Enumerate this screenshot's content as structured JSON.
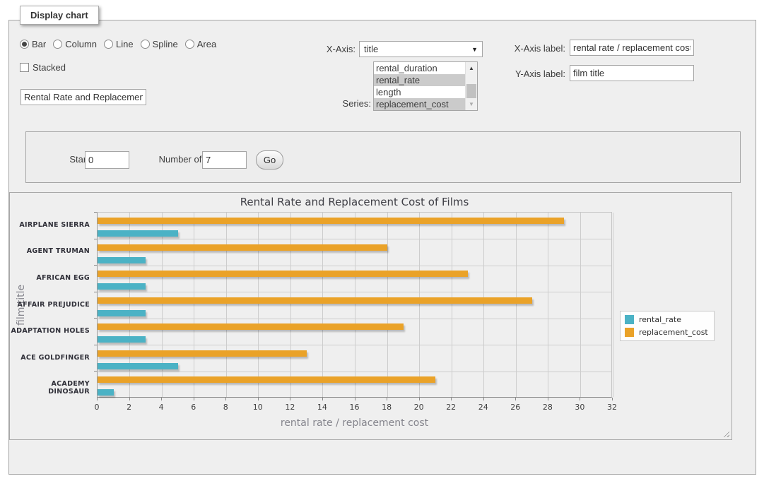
{
  "window": {
    "legend_title": "Display chart"
  },
  "chart_type_options": [
    {
      "label": "Bar",
      "selected": true
    },
    {
      "label": "Column",
      "selected": false
    },
    {
      "label": "Line",
      "selected": false
    },
    {
      "label": "Spline",
      "selected": false
    },
    {
      "label": "Area",
      "selected": false
    }
  ],
  "stacked": {
    "label": "Stacked",
    "checked": false
  },
  "title_input": {
    "value": "Rental Rate and Replacement Cost of Films"
  },
  "x_axis": {
    "label": "X-Axis:",
    "selected": "title"
  },
  "series_select": {
    "label": "Series:",
    "options": [
      {
        "label": "rental_duration",
        "selected": false
      },
      {
        "label": "rental_rate",
        "selected": true
      },
      {
        "label": "length",
        "selected": false
      },
      {
        "label": "replacement_cost",
        "selected": true
      }
    ]
  },
  "x_axis_label_field": {
    "label": "X-Axis label:",
    "value": "rental rate / replacement cost"
  },
  "y_axis_label_field": {
    "label": "Y-Axis label:",
    "value": "film title"
  },
  "row_controls": {
    "start_row_label": "Start row:",
    "start_row_value": "0",
    "num_rows_label": "Number of rows:",
    "num_rows_value": "7",
    "go_label": "Go"
  },
  "chart_data": {
    "type": "bar",
    "orientation": "horizontal",
    "title": "Rental Rate and Replacement Cost of Films",
    "xlabel": "rental rate / replacement cost",
    "ylabel": "film title",
    "categories": [
      "AIRPLANE SIERRA",
      "AGENT TRUMAN",
      "AFRICAN EGG",
      "AFFAIR PREJUDICE",
      "ADAPTATION HOLES",
      "ACE GOLDFINGER",
      "ACADEMY DINOSAUR"
    ],
    "series": [
      {
        "name": "rental_rate",
        "color": "#4bb2c5",
        "values": [
          4.99,
          2.99,
          2.99,
          2.99,
          2.99,
          4.99,
          0.99
        ]
      },
      {
        "name": "replacement_cost",
        "color": "#eaa228",
        "values": [
          28.99,
          17.99,
          22.99,
          26.99,
          18.99,
          12.99,
          20.99
        ]
      }
    ],
    "bar_row_order_top_to_bottom": [
      "replacement_cost",
      "rental_rate"
    ],
    "xlim": [
      0,
      32
    ],
    "xticks": [
      0,
      2,
      4,
      6,
      8,
      10,
      12,
      14,
      16,
      18,
      20,
      22,
      24,
      26,
      28,
      30,
      32
    ],
    "grid": true,
    "plot_background": "#efefef",
    "gridline_color": "#cdcdcd",
    "legend_position": "right"
  }
}
